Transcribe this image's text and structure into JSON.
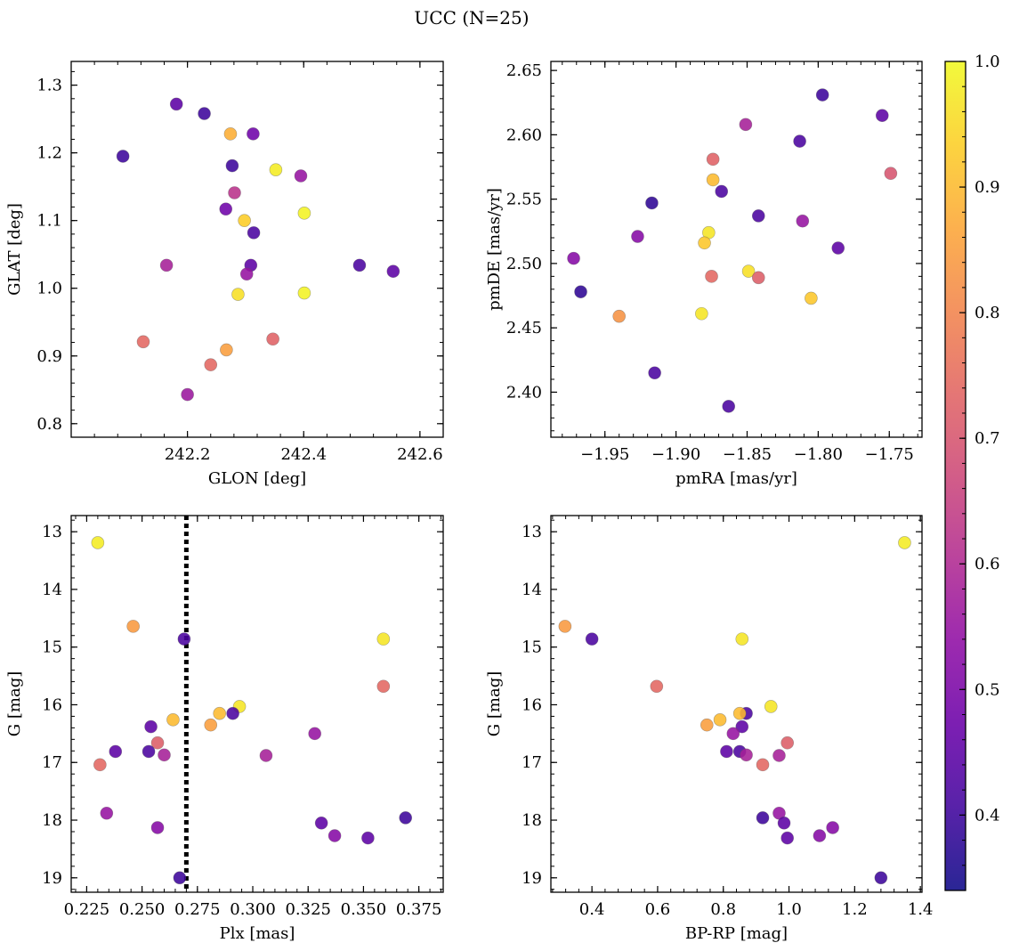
{
  "figure_title": "UCC (N=25)",
  "colorbar": {
    "min": 0.34,
    "max": 1.0,
    "ticks": [
      0.4,
      0.5,
      0.6,
      0.7,
      0.8,
      0.9,
      1.0
    ],
    "tick_labels": [
      "0.4",
      "0.5",
      "0.6",
      "0.7",
      "0.8",
      "0.9",
      "1.0"
    ],
    "colormap": "plasma"
  },
  "chart_data": [
    {
      "type": "scatter",
      "title": "",
      "xlabel": "GLON [deg]",
      "ylabel": "GLAT [deg]",
      "xlim": [
        242.0,
        242.64
      ],
      "ylim": [
        0.78,
        1.335
      ],
      "xticks": [
        242.2,
        242.4,
        242.6
      ],
      "xtick_labels": [
        "242.2",
        "242.4",
        "242.6"
      ],
      "yticks": [
        0.8,
        0.9,
        1.0,
        1.1,
        1.2,
        1.3
      ],
      "ytick_labels": [
        "0.8",
        "0.9",
        "1.0",
        "1.1",
        "1.2",
        "1.3"
      ],
      "y_inverted": false,
      "vline": null,
      "points": [
        {
          "x": 242.089,
          "y": 1.195,
          "c": 0.4
        },
        {
          "x": 242.181,
          "y": 1.272,
          "c": 0.45
        },
        {
          "x": 242.229,
          "y": 1.258,
          "c": 0.4
        },
        {
          "x": 242.274,
          "y": 1.228,
          "c": 0.88
        },
        {
          "x": 242.313,
          "y": 1.228,
          "c": 0.48
        },
        {
          "x": 242.277,
          "y": 1.181,
          "c": 0.4
        },
        {
          "x": 242.352,
          "y": 1.175,
          "c": 0.98
        },
        {
          "x": 242.395,
          "y": 1.166,
          "c": 0.55
        },
        {
          "x": 242.281,
          "y": 1.141,
          "c": 0.62
        },
        {
          "x": 242.266,
          "y": 1.117,
          "c": 0.48
        },
        {
          "x": 242.298,
          "y": 1.1,
          "c": 0.93
        },
        {
          "x": 242.401,
          "y": 1.111,
          "c": 0.99
        },
        {
          "x": 242.314,
          "y": 1.082,
          "c": 0.42
        },
        {
          "x": 242.164,
          "y": 1.034,
          "c": 0.58
        },
        {
          "x": 242.309,
          "y": 1.034,
          "c": 0.45
        },
        {
          "x": 242.302,
          "y": 1.021,
          "c": 0.55
        },
        {
          "x": 242.496,
          "y": 1.034,
          "c": 0.42
        },
        {
          "x": 242.554,
          "y": 1.025,
          "c": 0.45
        },
        {
          "x": 242.287,
          "y": 0.991,
          "c": 0.96
        },
        {
          "x": 242.401,
          "y": 0.993,
          "c": 0.99
        },
        {
          "x": 242.124,
          "y": 0.921,
          "c": 0.74
        },
        {
          "x": 242.267,
          "y": 0.909,
          "c": 0.85
        },
        {
          "x": 242.347,
          "y": 0.925,
          "c": 0.73
        },
        {
          "x": 242.24,
          "y": 0.887,
          "c": 0.74
        },
        {
          "x": 242.2,
          "y": 0.843,
          "c": 0.56
        }
      ]
    },
    {
      "type": "scatter",
      "title": "",
      "xlabel": "pmRA [mas/yr]",
      "ylabel": "pmDE [mas/yr]",
      "xlim": [
        -1.988,
        -1.727
      ],
      "ylim": [
        2.365,
        2.657
      ],
      "xticks": [
        -1.95,
        -1.9,
        -1.85,
        -1.8,
        -1.75
      ],
      "xtick_labels": [
        "−1.95",
        "−1.90",
        "−1.85",
        "−1.80",
        "−1.75"
      ],
      "yticks": [
        2.4,
        2.45,
        2.5,
        2.55,
        2.6,
        2.65
      ],
      "ytick_labels": [
        "2.40",
        "2.45",
        "2.50",
        "2.55",
        "2.60",
        "2.65"
      ],
      "y_inverted": false,
      "vline": null,
      "points": [
        {
          "x": -1.797,
          "y": 2.631,
          "c": 0.4
        },
        {
          "x": -1.755,
          "y": 2.615,
          "c": 0.45
        },
        {
          "x": -1.851,
          "y": 2.608,
          "c": 0.58
        },
        {
          "x": -1.813,
          "y": 2.595,
          "c": 0.42
        },
        {
          "x": -1.874,
          "y": 2.581,
          "c": 0.73
        },
        {
          "x": -1.749,
          "y": 2.57,
          "c": 0.7
        },
        {
          "x": -1.874,
          "y": 2.565,
          "c": 0.9
        },
        {
          "x": -1.868,
          "y": 2.556,
          "c": 0.42
        },
        {
          "x": -1.917,
          "y": 2.547,
          "c": 0.38
        },
        {
          "x": -1.842,
          "y": 2.537,
          "c": 0.42
        },
        {
          "x": -1.811,
          "y": 2.533,
          "c": 0.55
        },
        {
          "x": -1.877,
          "y": 2.524,
          "c": 0.97
        },
        {
          "x": -1.927,
          "y": 2.521,
          "c": 0.52
        },
        {
          "x": -1.88,
          "y": 2.516,
          "c": 0.92
        },
        {
          "x": -1.786,
          "y": 2.512,
          "c": 0.45
        },
        {
          "x": -1.972,
          "y": 2.504,
          "c": 0.52
        },
        {
          "x": -1.849,
          "y": 2.494,
          "c": 0.96
        },
        {
          "x": -1.875,
          "y": 2.49,
          "c": 0.74
        },
        {
          "x": -1.842,
          "y": 2.489,
          "c": 0.72
        },
        {
          "x": -1.967,
          "y": 2.478,
          "c": 0.38
        },
        {
          "x": -1.805,
          "y": 2.473,
          "c": 0.92
        },
        {
          "x": -1.94,
          "y": 2.459,
          "c": 0.83
        },
        {
          "x": -1.882,
          "y": 2.461,
          "c": 0.97
        },
        {
          "x": -1.915,
          "y": 2.415,
          "c": 0.42
        },
        {
          "x": -1.863,
          "y": 2.389,
          "c": 0.42
        }
      ]
    },
    {
      "type": "scatter",
      "title": "",
      "xlabel": "Plx [mas]",
      "ylabel": "G [mag]",
      "xlim": [
        0.218,
        0.386
      ],
      "ylim": [
        19.25,
        12.72
      ],
      "xticks": [
        0.225,
        0.25,
        0.275,
        0.3,
        0.325,
        0.35,
        0.375
      ],
      "xtick_labels": [
        "0.225",
        "0.250",
        "0.275",
        "0.300",
        "0.325",
        "0.350",
        "0.375"
      ],
      "yticks": [
        13,
        14,
        15,
        16,
        17,
        18,
        19
      ],
      "ytick_labels": [
        "13",
        "14",
        "15",
        "16",
        "17",
        "18",
        "19"
      ],
      "y_inverted": true,
      "vline": 0.27,
      "points": [
        {
          "x": 0.23,
          "y": 13.19,
          "c": 0.98
        },
        {
          "x": 0.246,
          "y": 14.64,
          "c": 0.84
        },
        {
          "x": 0.269,
          "y": 14.86,
          "c": 0.42
        },
        {
          "x": 0.359,
          "y": 14.86,
          "c": 0.97
        },
        {
          "x": 0.359,
          "y": 15.68,
          "c": 0.74
        },
        {
          "x": 0.294,
          "y": 16.03,
          "c": 0.97
        },
        {
          "x": 0.291,
          "y": 16.15,
          "c": 0.42
        },
        {
          "x": 0.285,
          "y": 16.15,
          "c": 0.9
        },
        {
          "x": 0.264,
          "y": 16.26,
          "c": 0.9
        },
        {
          "x": 0.281,
          "y": 16.35,
          "c": 0.85
        },
        {
          "x": 0.254,
          "y": 16.38,
          "c": 0.45
        },
        {
          "x": 0.328,
          "y": 16.5,
          "c": 0.55
        },
        {
          "x": 0.257,
          "y": 16.66,
          "c": 0.72
        },
        {
          "x": 0.238,
          "y": 16.81,
          "c": 0.45
        },
        {
          "x": 0.253,
          "y": 16.81,
          "c": 0.42
        },
        {
          "x": 0.26,
          "y": 16.87,
          "c": 0.58
        },
        {
          "x": 0.306,
          "y": 16.88,
          "c": 0.58
        },
        {
          "x": 0.231,
          "y": 17.04,
          "c": 0.74
        },
        {
          "x": 0.234,
          "y": 17.88,
          "c": 0.55
        },
        {
          "x": 0.369,
          "y": 17.96,
          "c": 0.4
        },
        {
          "x": 0.331,
          "y": 18.05,
          "c": 0.45
        },
        {
          "x": 0.257,
          "y": 18.13,
          "c": 0.52
        },
        {
          "x": 0.337,
          "y": 18.27,
          "c": 0.52
        },
        {
          "x": 0.352,
          "y": 18.31,
          "c": 0.45
        },
        {
          "x": 0.267,
          "y": 19.0,
          "c": 0.4
        }
      ]
    },
    {
      "type": "scatter",
      "title": "",
      "xlabel": "BP-RP [mag]",
      "ylabel": "G [mag]",
      "xlim": [
        0.275,
        1.405
      ],
      "ylim": [
        19.25,
        12.72
      ],
      "xticks": [
        0.4,
        0.6,
        0.8,
        1.0,
        1.2,
        1.4
      ],
      "xtick_labels": [
        "0.4",
        "0.6",
        "0.8",
        "1.0",
        "1.2",
        "1.4"
      ],
      "yticks": [
        13,
        14,
        15,
        16,
        17,
        18,
        19
      ],
      "ytick_labels": [
        "13",
        "14",
        "15",
        "16",
        "17",
        "18",
        "19"
      ],
      "y_inverted": true,
      "vline": null,
      "points": [
        {
          "x": 1.352,
          "y": 13.19,
          "c": 0.98
        },
        {
          "x": 0.318,
          "y": 14.64,
          "c": 0.84
        },
        {
          "x": 0.4,
          "y": 14.86,
          "c": 0.42
        },
        {
          "x": 0.857,
          "y": 14.86,
          "c": 0.97
        },
        {
          "x": 0.597,
          "y": 15.68,
          "c": 0.74
        },
        {
          "x": 0.945,
          "y": 16.03,
          "c": 0.97
        },
        {
          "x": 0.87,
          "y": 16.15,
          "c": 0.42
        },
        {
          "x": 0.85,
          "y": 16.15,
          "c": 0.9
        },
        {
          "x": 0.79,
          "y": 16.26,
          "c": 0.9
        },
        {
          "x": 0.75,
          "y": 16.35,
          "c": 0.85
        },
        {
          "x": 0.857,
          "y": 16.38,
          "c": 0.45
        },
        {
          "x": 0.83,
          "y": 16.5,
          "c": 0.55
        },
        {
          "x": 0.995,
          "y": 16.66,
          "c": 0.72
        },
        {
          "x": 0.81,
          "y": 16.81,
          "c": 0.45
        },
        {
          "x": 0.85,
          "y": 16.81,
          "c": 0.42
        },
        {
          "x": 0.87,
          "y": 16.87,
          "c": 0.58
        },
        {
          "x": 0.97,
          "y": 16.88,
          "c": 0.58
        },
        {
          "x": 0.92,
          "y": 17.04,
          "c": 0.74
        },
        {
          "x": 0.97,
          "y": 17.88,
          "c": 0.55
        },
        {
          "x": 0.92,
          "y": 17.96,
          "c": 0.4
        },
        {
          "x": 0.985,
          "y": 18.05,
          "c": 0.45
        },
        {
          "x": 1.133,
          "y": 18.13,
          "c": 0.52
        },
        {
          "x": 1.093,
          "y": 18.27,
          "c": 0.52
        },
        {
          "x": 0.995,
          "y": 18.31,
          "c": 0.45
        },
        {
          "x": 1.28,
          "y": 19.0,
          "c": 0.4
        }
      ]
    }
  ]
}
